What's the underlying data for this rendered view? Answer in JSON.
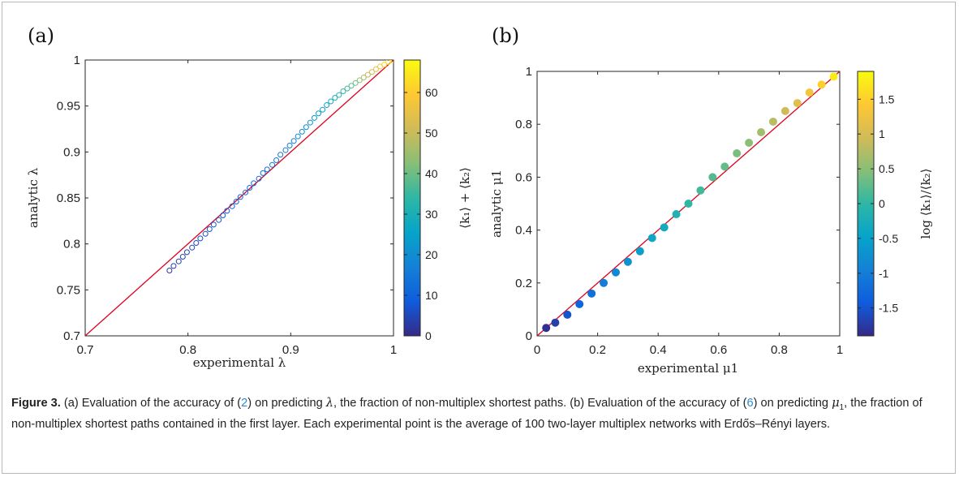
{
  "figure": {
    "caption_label": "Figure 3.",
    "caption_p1": " (a) Evaluation of the accuracy of (",
    "caption_ref1": "2",
    "caption_p2": ") on predicting ",
    "caption_sym1": "λ",
    "caption_p3": ", the fraction of non-multiplex shortest paths. (b) Evaluation of the accuracy of (",
    "caption_ref2": "6",
    "caption_p4": ") on predicting ",
    "caption_sym2": "μ",
    "caption_sym2_sub": "1",
    "caption_p5": ", the fraction of non-multiplex shortest paths contained in the first layer. Each experimental point is the average of 100  two-layer multiplex networks with Erdős–Rényi layers."
  },
  "colors": {
    "line": "#e0001b",
    "parula": [
      "#352a87",
      "#0f5cdd",
      "#1481d6",
      "#06a4ca",
      "#2eb7a4",
      "#87bf77",
      "#d1bb59",
      "#fec832",
      "#f9fb0e"
    ]
  },
  "chart_data": [
    {
      "panel_label": "(a)",
      "type": "scatter",
      "xlabel": "experimental λ",
      "ylabel": "analytic λ",
      "xlim": [
        0.7,
        1.0
      ],
      "ylim": [
        0.7,
        1.0
      ],
      "xticks": [
        "0.7",
        "0.8",
        "0.9",
        "1"
      ],
      "yticks": [
        "0.7",
        "0.75",
        "0.8",
        "0.85",
        "0.9",
        "0.95",
        "1"
      ],
      "reference_line": "y = x",
      "marker": "open circle",
      "color_variable": "⟨k1⟩ + ⟨k2⟩",
      "colorbar_label": "⟨k₁⟩ + ⟨k₂⟩",
      "colorbar_range": [
        0,
        68
      ],
      "colorbar_ticks": [
        "0",
        "10",
        "20",
        "30",
        "40",
        "50",
        "60"
      ],
      "points": [
        [
          0.782,
          0.771,
          2
        ],
        [
          0.786,
          0.776,
          3
        ],
        [
          0.791,
          0.781,
          3
        ],
        [
          0.795,
          0.786,
          4
        ],
        [
          0.799,
          0.791,
          4
        ],
        [
          0.804,
          0.796,
          5
        ],
        [
          0.808,
          0.801,
          5
        ],
        [
          0.812,
          0.806,
          6
        ],
        [
          0.817,
          0.811,
          6
        ],
        [
          0.821,
          0.816,
          7
        ],
        [
          0.825,
          0.821,
          7
        ],
        [
          0.83,
          0.826,
          8
        ],
        [
          0.834,
          0.831,
          8
        ],
        [
          0.838,
          0.836,
          9
        ],
        [
          0.843,
          0.841,
          9
        ],
        [
          0.847,
          0.846,
          10
        ],
        [
          0.851,
          0.851,
          10
        ],
        [
          0.856,
          0.856,
          11
        ],
        [
          0.86,
          0.861,
          11
        ],
        [
          0.864,
          0.866,
          12
        ],
        [
          0.869,
          0.871,
          12
        ],
        [
          0.873,
          0.877,
          13
        ],
        [
          0.877,
          0.881,
          13
        ],
        [
          0.882,
          0.886,
          14
        ],
        [
          0.886,
          0.891,
          14
        ],
        [
          0.89,
          0.897,
          15
        ],
        [
          0.895,
          0.902,
          15
        ],
        [
          0.899,
          0.907,
          16
        ],
        [
          0.903,
          0.912,
          17
        ],
        [
          0.907,
          0.917,
          18
        ],
        [
          0.911,
          0.922,
          19
        ],
        [
          0.915,
          0.927,
          20
        ],
        [
          0.919,
          0.932,
          21
        ],
        [
          0.923,
          0.937,
          22
        ],
        [
          0.927,
          0.942,
          23
        ],
        [
          0.931,
          0.946,
          24
        ],
        [
          0.935,
          0.951,
          26
        ],
        [
          0.939,
          0.955,
          28
        ],
        [
          0.943,
          0.959,
          30
        ],
        [
          0.947,
          0.962,
          32
        ],
        [
          0.951,
          0.966,
          34
        ],
        [
          0.955,
          0.969,
          36
        ],
        [
          0.959,
          0.972,
          38
        ],
        [
          0.963,
          0.975,
          40
        ],
        [
          0.967,
          0.978,
          43
        ],
        [
          0.971,
          0.981,
          46
        ],
        [
          0.975,
          0.984,
          49
        ],
        [
          0.979,
          0.987,
          52
        ],
        [
          0.983,
          0.99,
          55
        ],
        [
          0.987,
          0.993,
          58
        ],
        [
          0.991,
          0.995,
          61
        ],
        [
          0.995,
          0.998,
          64
        ],
        [
          1.0,
          1.0,
          66
        ]
      ]
    },
    {
      "panel_label": "(b)",
      "type": "scatter",
      "xlabel": "experimental μ1",
      "ylabel": "analytic μ1",
      "xlim": [
        0,
        1
      ],
      "ylim": [
        0,
        1
      ],
      "xticks": [
        "0",
        "0.2",
        "0.4",
        "0.6",
        "0.8",
        "1"
      ],
      "yticks": [
        "0",
        "0.2",
        "0.4",
        "0.6",
        "0.8",
        "1"
      ],
      "reference_line": "y = x",
      "marker": "filled circle",
      "color_variable": "log ⟨k1⟩/⟨k2⟩",
      "colorbar_label": "log ⟨k₁⟩/⟨k₂⟩",
      "colorbar_range": [
        -1.9,
        1.9
      ],
      "colorbar_ticks": [
        "-1.5",
        "-1",
        "-0.5",
        "0",
        "0.5",
        "1",
        "1.5"
      ],
      "points": [
        [
          0.03,
          0.03,
          -1.85
        ],
        [
          0.06,
          0.05,
          -1.7
        ],
        [
          0.1,
          0.08,
          -1.5
        ],
        [
          0.14,
          0.12,
          -1.3
        ],
        [
          0.18,
          0.16,
          -1.15
        ],
        [
          0.22,
          0.2,
          -1.0
        ],
        [
          0.26,
          0.24,
          -0.85
        ],
        [
          0.3,
          0.28,
          -0.7
        ],
        [
          0.34,
          0.32,
          -0.55
        ],
        [
          0.38,
          0.37,
          -0.4
        ],
        [
          0.42,
          0.41,
          -0.3
        ],
        [
          0.46,
          0.46,
          -0.15
        ],
        [
          0.5,
          0.5,
          0.0
        ],
        [
          0.54,
          0.55,
          0.1
        ],
        [
          0.58,
          0.6,
          0.2
        ],
        [
          0.62,
          0.64,
          0.3
        ],
        [
          0.66,
          0.69,
          0.4
        ],
        [
          0.7,
          0.73,
          0.5
        ],
        [
          0.74,
          0.77,
          0.65
        ],
        [
          0.78,
          0.81,
          0.8
        ],
        [
          0.82,
          0.85,
          0.95
        ],
        [
          0.86,
          0.88,
          1.1
        ],
        [
          0.9,
          0.92,
          1.3
        ],
        [
          0.94,
          0.95,
          1.5
        ],
        [
          0.98,
          0.98,
          1.75
        ]
      ]
    }
  ]
}
